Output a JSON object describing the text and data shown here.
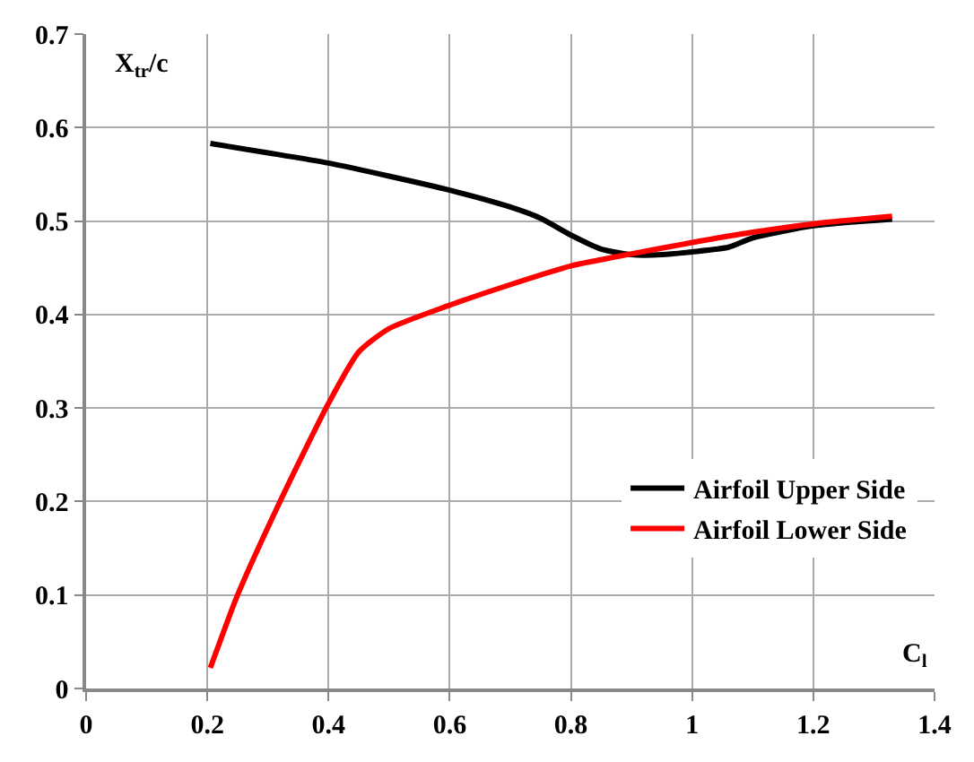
{
  "chart_data": {
    "type": "line",
    "xlabel": "C$_{l}$",
    "ylabel": "X$_{tr}$/c",
    "xlim": [
      0,
      1.4
    ],
    "xticks": [
      0,
      0.2,
      0.4,
      0.6,
      0.8,
      1,
      1.2,
      1.4
    ],
    "ylim": [
      0,
      0.7
    ],
    "yticks": [
      0,
      0.1,
      0.2,
      0.3,
      0.4,
      0.5,
      0.6,
      0.7
    ],
    "grid": true,
    "legend": "bottom right",
    "marker": "none",
    "line_style": "solid",
    "series": [
      {
        "name": "Airfoil Upper Side",
        "color": "#000000",
        "x": [
          0.205,
          0.3,
          0.4,
          0.5,
          0.6,
          0.7,
          0.75,
          0.8,
          0.85,
          0.9,
          0.95,
          1.0,
          1.06,
          1.1,
          1.2,
          1.33
        ],
        "values": [
          0.583,
          0.573,
          0.562,
          0.548,
          0.533,
          0.515,
          0.503,
          0.485,
          0.47,
          0.464,
          0.464,
          0.467,
          0.472,
          0.482,
          0.495,
          0.502
        ]
      },
      {
        "name": "Airfoil Lower Side",
        "color": "#ff0000",
        "x": [
          0.205,
          0.25,
          0.32,
          0.4,
          0.45,
          0.5,
          0.6,
          0.7,
          0.8,
          0.9,
          1.0,
          1.1,
          1.2,
          1.33
        ],
        "values": [
          0.022,
          0.1,
          0.2,
          0.305,
          0.36,
          0.385,
          0.41,
          0.432,
          0.452,
          0.465,
          0.477,
          0.488,
          0.497,
          0.505
        ]
      }
    ]
  }
}
